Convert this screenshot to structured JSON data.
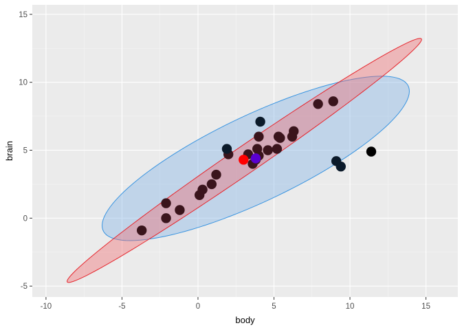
{
  "chart_data": {
    "type": "scatter",
    "title": "",
    "xlabel": "body",
    "ylabel": "brain",
    "xlim": [
      -10.9,
      17.1
    ],
    "ylim": [
      -5.8,
      15.7
    ],
    "x_ticks": [
      -10,
      -5,
      0,
      5,
      10,
      15
    ],
    "y_ticks": [
      -5,
      0,
      5,
      10,
      15
    ],
    "x_tick_labels": [
      "-10",
      "-5",
      "0",
      "5",
      "10",
      "15"
    ],
    "y_tick_labels": [
      "-5",
      "0",
      "5",
      "10",
      "15"
    ],
    "grid": true,
    "legend": "none",
    "ellipses": [
      {
        "center": [
          3.8,
          4.4
        ],
        "endpoints": [
          [
            -6.2,
            -1.0
          ],
          [
            13.8,
            9.8
          ]
        ],
        "minor_half_width": 3.1,
        "fill": "#7fb2e5",
        "stroke": "#3793e0"
      },
      {
        "center": [
          3.0,
          4.3
        ],
        "endpoints": [
          [
            -8.6,
            -4.7
          ],
          [
            14.7,
            13.2
          ]
        ],
        "minor_half_width": 0.95,
        "fill": "#f0696e",
        "stroke": "#e6242b"
      }
    ],
    "series": [
      {
        "name": "",
        "color": "#3a141c",
        "x": [
          -3.7,
          -2.1,
          -2.1,
          -1.2,
          0.1,
          0.3,
          0.9,
          1.2,
          2.0,
          3.3,
          3.6,
          3.8,
          3.9,
          4.0,
          4.0,
          4.6,
          5.2,
          5.3,
          5.4,
          6.2,
          6.3,
          7.9,
          8.9
        ],
        "y": [
          -0.9,
          0.0,
          1.1,
          0.6,
          1.7,
          2.1,
          2.5,
          3.2,
          4.7,
          4.7,
          4.0,
          4.3,
          5.1,
          6.0,
          4.6,
          5.0,
          5.1,
          6.0,
          5.9,
          6.0,
          6.4,
          8.4,
          8.6
        ]
      },
      {
        "name": "",
        "color": "#0b1a2a",
        "x": [
          1.9,
          4.1,
          9.1,
          9.4
        ],
        "y": [
          5.1,
          7.1,
          4.2,
          3.8
        ]
      },
      {
        "name": "",
        "color": "#000000",
        "x": [
          11.4
        ],
        "y": [
          4.9
        ]
      },
      {
        "name": "",
        "color": "#ff0000",
        "x": [
          3.0
        ],
        "y": [
          4.3
        ]
      },
      {
        "name": "",
        "color": "#5a00d1",
        "x": [
          3.8
        ],
        "y": [
          4.4
        ]
      }
    ]
  },
  "colors": {
    "panel_background": "#ebebeb",
    "grid_major": "#ffffff",
    "grid_minor": "#f5f5f5"
  }
}
